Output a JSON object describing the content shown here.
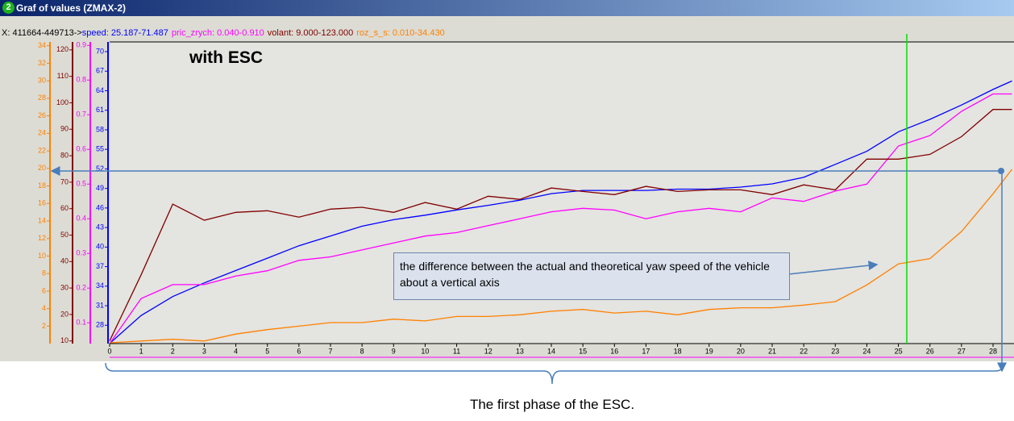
{
  "window": {
    "number": "2",
    "title": "Graf of values   (ZMAX-2)"
  },
  "chart_data": {
    "type": "line",
    "header_prefix": "X: 411664-449713->",
    "x": [
      0,
      1,
      2,
      3,
      4,
      5,
      6,
      7,
      8,
      9,
      10,
      11,
      12,
      13,
      14,
      15,
      16,
      17,
      18,
      19,
      20,
      21,
      22,
      23,
      24,
      25,
      26,
      27,
      28,
      28.6
    ],
    "xlim": [
      0,
      28.6
    ],
    "xticks": [
      0,
      1,
      2,
      3,
      4,
      5,
      6,
      7,
      8,
      9,
      10,
      11,
      12,
      13,
      14,
      15,
      16,
      17,
      18,
      19,
      20,
      21,
      22,
      23,
      24,
      25,
      26,
      27,
      28
    ],
    "series": [
      {
        "name": "speed: 25.187-71.487",
        "color": "#0000ff",
        "ylim": [
          25.187,
          71.487
        ],
        "yticks": [
          28,
          31,
          34,
          37,
          40,
          43,
          46,
          49,
          52,
          55,
          58,
          61,
          64,
          67,
          70
        ],
        "values": [
          25.2,
          29.5,
          32.4,
          34.5,
          36.4,
          38.3,
          40.2,
          41.7,
          43.2,
          44.2,
          44.9,
          45.7,
          46.4,
          47.2,
          48.2,
          48.7,
          48.7,
          48.7,
          48.9,
          48.9,
          49.2,
          49.7,
          50.7,
          52.7,
          54.7,
          57.7,
          59.6,
          61.8,
          64.2,
          65.5
        ]
      },
      {
        "name": "pric_zrych: 0.040-0.910",
        "color": "#ff00ff",
        "ylim": [
          0.04,
          0.91
        ],
        "yticks": [
          0.1,
          0.2,
          0.3,
          0.4,
          0.5,
          0.6,
          0.7,
          0.8,
          0.9
        ],
        "values": [
          0.04,
          0.17,
          0.21,
          0.21,
          0.235,
          0.25,
          0.28,
          0.29,
          0.31,
          0.33,
          0.35,
          0.36,
          0.38,
          0.4,
          0.42,
          0.43,
          0.425,
          0.4,
          0.42,
          0.43,
          0.42,
          0.46,
          0.45,
          0.48,
          0.5,
          0.61,
          0.64,
          0.71,
          0.76,
          0.76
        ]
      },
      {
        "name": "volant: 9.000-123.000",
        "color": "#800000",
        "ylim": [
          9,
          123
        ],
        "yticks": [
          10,
          20,
          30,
          40,
          50,
          60,
          70,
          80,
          90,
          100,
          110,
          120
        ],
        "values": [
          10,
          35,
          61.7,
          55.6,
          58.6,
          59.2,
          56.8,
          59.8,
          60.5,
          58.6,
          62.3,
          59.8,
          64.7,
          63.5,
          67.8,
          66.5,
          65.3,
          68.4,
          66.5,
          67.1,
          67.1,
          65.3,
          69,
          67.1,
          78.7,
          78.7,
          80.5,
          87.2,
          97.5,
          97.5
        ]
      },
      {
        "name": "roz_s_s: 0.010-34.430",
        "color": "#ff8000",
        "ylim": [
          0.01,
          34.43
        ],
        "yticks": [
          2,
          4,
          6,
          8,
          10,
          12,
          14,
          16,
          18,
          20,
          22,
          24,
          26,
          28,
          30,
          32,
          34
        ],
        "values": [
          0.1,
          0.3,
          0.5,
          0.3,
          1.1,
          1.6,
          2.0,
          2.4,
          2.4,
          2.8,
          2.6,
          3.1,
          3.1,
          3.3,
          3.7,
          3.9,
          3.5,
          3.7,
          3.3,
          3.9,
          4.1,
          4.1,
          4.4,
          4.8,
          6.7,
          9.1,
          9.7,
          12.8,
          17.1,
          19.9
        ]
      }
    ],
    "annotations": [
      "with ESC",
      "the difference between the actual and theoretical yaw speed of the vehicle about a vertical axis",
      "The first phase of the ESC."
    ]
  }
}
